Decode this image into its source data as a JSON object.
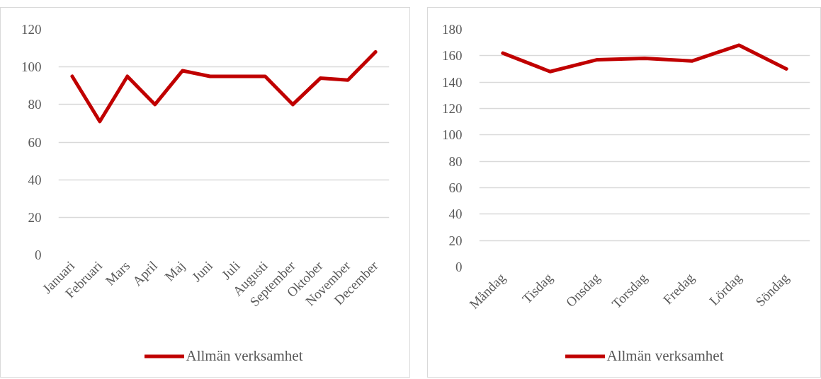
{
  "chart_data": [
    {
      "type": "line",
      "categories": [
        "Januari",
        "Februari",
        "Mars",
        "April",
        "Maj",
        "Juni",
        "Juli",
        "Augusti",
        "September",
        "Oktober",
        "November",
        "December"
      ],
      "series": [
        {
          "name": "Allmän verksamhet",
          "color": "#c00000",
          "values": [
            95,
            71,
            95,
            80,
            98,
            95,
            95,
            95,
            80,
            94,
            93,
            108
          ]
        }
      ],
      "ylim": [
        0,
        120
      ],
      "yticks": [
        0,
        20,
        40,
        60,
        80,
        100,
        120
      ],
      "grid": "y",
      "legend": "bottom"
    },
    {
      "type": "line",
      "categories": [
        "Måndag",
        "Tisdag",
        "Onsdag",
        "Torsdag",
        "Fredag",
        "Lördag",
        "Söndag"
      ],
      "series": [
        {
          "name": "Allmän verksamhet",
          "color": "#c00000",
          "values": [
            162,
            148,
            157,
            158,
            156,
            168,
            150
          ]
        }
      ],
      "ylim": [
        0,
        180
      ],
      "yticks": [
        0,
        20,
        40,
        60,
        80,
        100,
        120,
        140,
        160,
        180
      ],
      "grid": "y",
      "legend": "bottom"
    }
  ]
}
